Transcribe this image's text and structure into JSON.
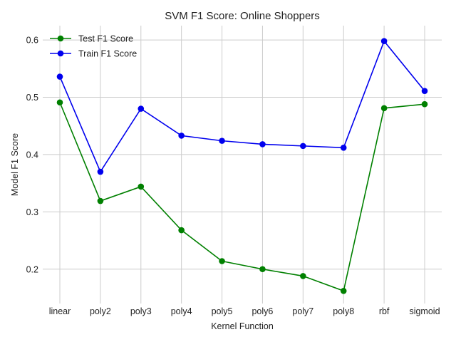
{
  "chart_data": {
    "type": "line",
    "title": "SVM F1 Score: Online Shoppers",
    "xlabel": "Kernel Function",
    "ylabel": "Model F1 Score",
    "categories": [
      "linear",
      "poly2",
      "poly3",
      "poly4",
      "poly5",
      "poly6",
      "poly7",
      "poly8",
      "rbf",
      "sigmoid"
    ],
    "ylim": [
      0.14,
      0.625
    ],
    "yticks": [
      0.2,
      0.3,
      0.4,
      0.5,
      0.6
    ],
    "ytick_labels": [
      "0.2",
      "0.3",
      "0.4",
      "0.5",
      "0.6"
    ],
    "grid": true,
    "legend_position": "top-left",
    "series": [
      {
        "name": "Test F1 Score",
        "color": "#008000",
        "marker": "circle",
        "values": [
          0.491,
          0.319,
          0.344,
          0.268,
          0.214,
          0.2,
          0.188,
          0.162,
          0.481,
          0.488
        ]
      },
      {
        "name": "Train F1 Score",
        "color": "#0000ee",
        "marker": "circle",
        "values": [
          0.536,
          0.37,
          0.48,
          0.433,
          0.424,
          0.418,
          0.415,
          0.412,
          0.598,
          0.511
        ]
      }
    ]
  }
}
